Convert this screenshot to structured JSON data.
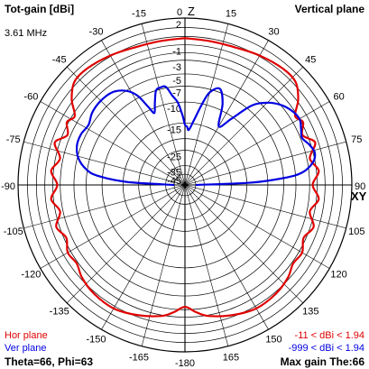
{
  "header": {
    "title": "Tot-gain [dBi]",
    "plane": "Vertical plane",
    "frequency": "3.61 MHz"
  },
  "footer": {
    "hor_label": "Hor plane",
    "ver_label": "Ver plane",
    "hor_range": "-11 < dBi < 1.94",
    "ver_range": "-999 < dBi < 1.94",
    "angles": "Theta=66, Phi=63",
    "max_gain": "Max gain The:66"
  },
  "colors": {
    "hor": "#e00000",
    "ver": "#0000e0",
    "grid": "#000000",
    "hor_text": "#e00000",
    "ver_text": "#0000e0"
  },
  "chart_data": {
    "type": "polar",
    "axis_labels": {
      "z": "Z",
      "xy": "XY"
    },
    "angle_ticks": [
      {
        "deg": 0,
        "label": "0"
      },
      {
        "deg": 15,
        "label": "15"
      },
      {
        "deg": 30,
        "label": "30"
      },
      {
        "deg": 45,
        "label": "45"
      },
      {
        "deg": 60,
        "label": "60"
      },
      {
        "deg": 75,
        "label": "75"
      },
      {
        "deg": 90,
        "label": "90"
      },
      {
        "deg": 105,
        "label": "105"
      },
      {
        "deg": 120,
        "label": "120"
      },
      {
        "deg": 135,
        "label": "135"
      },
      {
        "deg": 150,
        "label": "150"
      },
      {
        "deg": 165,
        "label": "165"
      },
      {
        "deg": 180,
        "label": "-180"
      },
      {
        "deg": -165,
        "label": "-165"
      },
      {
        "deg": -150,
        "label": "-150"
      },
      {
        "deg": -135,
        "label": "-135"
      },
      {
        "deg": -120,
        "label": "-120"
      },
      {
        "deg": -105,
        "label": "-105"
      },
      {
        "deg": -90,
        "label": "-90"
      },
      {
        "deg": -75,
        "label": "-75"
      },
      {
        "deg": -60,
        "label": "-60"
      },
      {
        "deg": -45,
        "label": "-45"
      },
      {
        "deg": -30,
        "label": "-30"
      },
      {
        "deg": -15,
        "label": "-15"
      }
    ],
    "gain_rings": [
      2,
      1,
      0,
      -1,
      -2,
      -3,
      -5,
      -7,
      -10,
      -15,
      -20,
      -25,
      -35,
      -45
    ],
    "ring_labels": [
      {
        "value": 2,
        "label": "2"
      },
      {
        "value": -1,
        "label": "-1"
      },
      {
        "value": -3,
        "label": "-3"
      },
      {
        "value": -5,
        "label": "-5"
      },
      {
        "value": -7,
        "label": "-7"
      },
      {
        "value": -10,
        "label": "-10"
      },
      {
        "value": -15,
        "label": "-15"
      },
      {
        "value": -25,
        "label": "-25"
      },
      {
        "value": -35,
        "label": "-35"
      },
      {
        "value": -45,
        "label": "-45"
      }
    ],
    "series": [
      {
        "name": "Hor plane",
        "points": [
          [
            0,
            -0.2
          ],
          [
            10,
            -0.3
          ],
          [
            20,
            -0.25
          ],
          [
            30,
            0.1
          ],
          [
            40,
            0.4
          ],
          [
            47,
            0.3
          ],
          [
            53,
            -0.8
          ],
          [
            58,
            -2.3
          ],
          [
            62,
            -1.8
          ],
          [
            67,
            -2.6
          ],
          [
            72,
            -1.4
          ],
          [
            78,
            -2.6
          ],
          [
            84,
            -1.7
          ],
          [
            90,
            -2.6
          ],
          [
            96,
            -1.7
          ],
          [
            102,
            -2.6
          ],
          [
            108,
            -1.6
          ],
          [
            114,
            -2.3
          ],
          [
            120,
            -1.6
          ],
          [
            126,
            -1.8
          ],
          [
            132,
            -1.2
          ],
          [
            140,
            -0.8
          ],
          [
            150,
            -0.7
          ],
          [
            160,
            -1.2
          ],
          [
            170,
            -1.9
          ],
          [
            175,
            -2.6
          ],
          [
            180,
            -3.4
          ],
          [
            -175,
            -2.6
          ],
          [
            -170,
            -1.9
          ],
          [
            -160,
            -1.2
          ],
          [
            -150,
            -0.7
          ],
          [
            -140,
            -0.8
          ],
          [
            -132,
            -1.2
          ],
          [
            -126,
            -1.8
          ],
          [
            -120,
            -1.6
          ],
          [
            -114,
            -2.3
          ],
          [
            -108,
            -1.6
          ],
          [
            -102,
            -2.6
          ],
          [
            -96,
            -1.7
          ],
          [
            -90,
            -2.6
          ],
          [
            -84,
            -1.7
          ],
          [
            -78,
            -2.6
          ],
          [
            -72,
            -1.4
          ],
          [
            -67,
            -2.6
          ],
          [
            -62,
            -1.8
          ],
          [
            -58,
            -2.3
          ],
          [
            -53,
            -0.8
          ],
          [
            -47,
            0.3
          ],
          [
            -40,
            0.4
          ],
          [
            -30,
            0.1
          ],
          [
            -20,
            -0.25
          ],
          [
            -10,
            -0.3
          ],
          [
            0,
            -0.2
          ]
        ]
      },
      {
        "name": "Ver plane",
        "points": [
          [
            90,
            -45
          ],
          [
            88,
            -14
          ],
          [
            86,
            -7
          ],
          [
            84,
            -4
          ],
          [
            80,
            -2.3
          ],
          [
            76,
            -1.8
          ],
          [
            72,
            -2.2
          ],
          [
            68,
            -2.8
          ],
          [
            64,
            -2.4
          ],
          [
            60,
            -2.0
          ],
          [
            55,
            -2.3
          ],
          [
            50,
            -3.0
          ],
          [
            45,
            -4.2
          ],
          [
            40,
            -6.2
          ],
          [
            35,
            -10.5
          ],
          [
            30,
            -13.5
          ],
          [
            25,
            -8.8
          ],
          [
            20,
            -6.4
          ],
          [
            15,
            -7.5
          ],
          [
            12,
            -10
          ],
          [
            8,
            -14
          ],
          [
            4,
            -17
          ],
          [
            2,
            -16
          ],
          [
            0,
            -15.5
          ],
          [
            -2,
            -13
          ],
          [
            -5,
            -10
          ],
          [
            -8,
            -8.6
          ],
          [
            -11,
            -6.8
          ],
          [
            -14,
            -6.7
          ],
          [
            -17,
            -7.0
          ],
          [
            -20,
            -9
          ],
          [
            -23,
            -11
          ],
          [
            -25,
            -9.5
          ],
          [
            -28,
            -6.6
          ],
          [
            -32,
            -5.0
          ],
          [
            -38,
            -4.0
          ],
          [
            -45,
            -3.8
          ],
          [
            -52,
            -4.0
          ],
          [
            -58,
            -4.6
          ],
          [
            -64,
            -4.3
          ],
          [
            -70,
            -4.4
          ],
          [
            -76,
            -5.2
          ],
          [
            -81,
            -6.8
          ],
          [
            -84,
            -9
          ],
          [
            -87,
            -16
          ],
          [
            -90,
            -45
          ]
        ]
      }
    ]
  }
}
